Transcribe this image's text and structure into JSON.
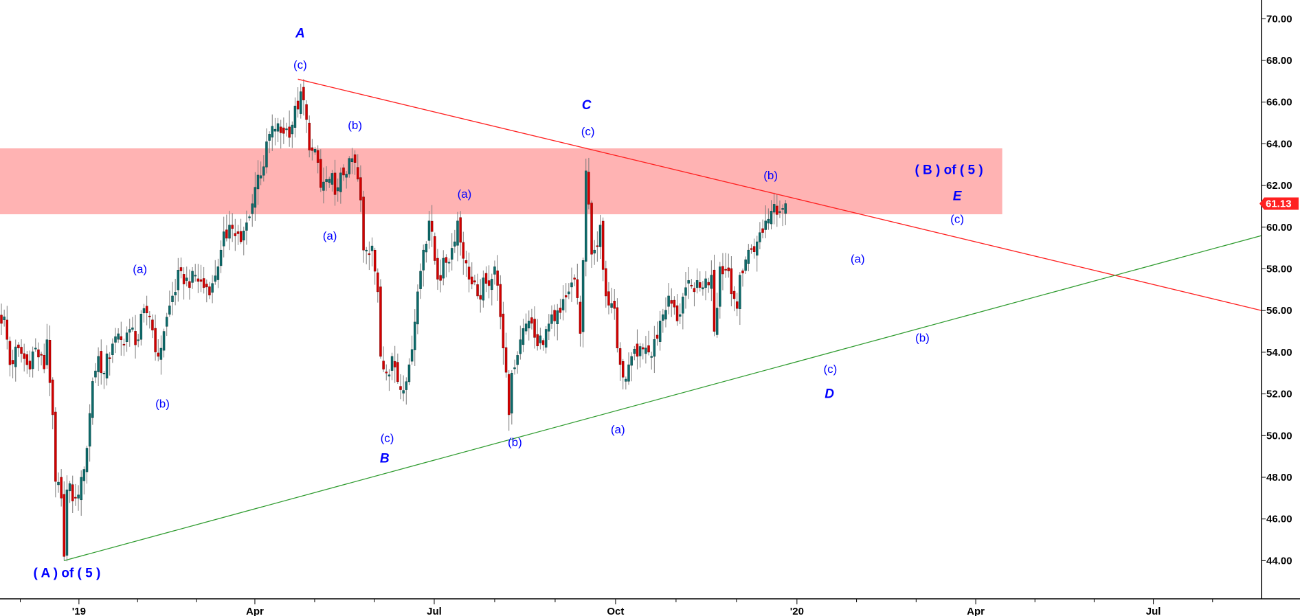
{
  "chart_data": {
    "type": "candlestick",
    "title": "",
    "xlabel": "",
    "ylabel": "",
    "ylim": [
      40.5,
      70.9
    ],
    "y_ticks": [
      "70.00",
      "68.00",
      "66.00",
      "64.00",
      "62.00",
      "60.00",
      "58.00",
      "56.00",
      "54.00",
      "52.00",
      "50.00",
      "48.00",
      "46.00",
      "44.00"
    ],
    "y_tick_values": [
      70,
      68,
      66,
      64,
      62,
      60,
      58,
      56,
      54,
      52,
      50,
      48,
      46,
      44
    ],
    "x_unit": "trading-day index",
    "xlim": [
      0,
      442
    ],
    "x_ticks": [
      {
        "label": "'19",
        "index": 27.2
      },
      {
        "label": "Apr",
        "index": 88.9
      },
      {
        "label": "Jul",
        "index": 151.8
      },
      {
        "label": "Oct",
        "index": 215.4
      },
      {
        "label": "'20",
        "index": 279
      },
      {
        "label": "Apr",
        "index": 341.7
      },
      {
        "label": "Jul",
        "index": 404
      }
    ],
    "last_price": "61.13",
    "colors": {
      "up": "#0d6b6b",
      "down": "#d40000",
      "wick": "#7a7a7a",
      "label": "#0000ff",
      "last_price_bg": "#ff2020",
      "band": "#ffb3b3",
      "resistance": "#ff2020",
      "support": "#2e9b2e"
    },
    "close_waypoints": [
      [
        1,
        55.7
      ],
      [
        3,
        53.4
      ],
      [
        6,
        54.2
      ],
      [
        9,
        53.4
      ],
      [
        12,
        54.2
      ],
      [
        15,
        53.2
      ],
      [
        16,
        54.6
      ],
      [
        18,
        51
      ],
      [
        19,
        47.8
      ],
      [
        21,
        47
      ],
      [
        22,
        44.2
      ],
      [
        23,
        47.4
      ],
      [
        26,
        47
      ],
      [
        28,
        48
      ],
      [
        30,
        49.4
      ],
      [
        32,
        52.6
      ],
      [
        34,
        53.8
      ],
      [
        36,
        53
      ],
      [
        39,
        54.4
      ],
      [
        42,
        54.6
      ],
      [
        45,
        55.1
      ],
      [
        48,
        54.6
      ],
      [
        50,
        56.1
      ],
      [
        52,
        55.7
      ],
      [
        55,
        53.8
      ],
      [
        57,
        55
      ],
      [
        60,
        56.7
      ],
      [
        63,
        57.9
      ],
      [
        66,
        57.1
      ],
      [
        68,
        57.7
      ],
      [
        71,
        57.1
      ],
      [
        74,
        57.3
      ],
      [
        77,
        58.9
      ],
      [
        80,
        60.1
      ],
      [
        84,
        59.3
      ],
      [
        87,
        60.5
      ],
      [
        90,
        62.5
      ],
      [
        92,
        62.9
      ],
      [
        93,
        64.1
      ],
      [
        96,
        64.7
      ],
      [
        99,
        64.5
      ],
      [
        102,
        64.9
      ],
      [
        105,
        66.5
      ],
      [
        106,
        66.1
      ],
      [
        108,
        63.7
      ],
      [
        111,
        63.1
      ],
      [
        112,
        61.9
      ],
      [
        115,
        62.3
      ],
      [
        118,
        61.9
      ],
      [
        120,
        62.5
      ],
      [
        122,
        63.3
      ],
      [
        124,
        63.1
      ],
      [
        126,
        61.3
      ],
      [
        127,
        58.9
      ],
      [
        128,
        58.9
      ],
      [
        130,
        59.1
      ],
      [
        132,
        56.9
      ],
      [
        133,
        53.8
      ],
      [
        135,
        53
      ],
      [
        137,
        53.8
      ],
      [
        140,
        52.2
      ],
      [
        143,
        53.4
      ],
      [
        146,
        56.9
      ],
      [
        148,
        58.9
      ],
      [
        150,
        60.3
      ],
      [
        153,
        57.5
      ],
      [
        156,
        58.3
      ],
      [
        159,
        59.3
      ],
      [
        160,
        60.3
      ],
      [
        162,
        58.5
      ],
      [
        164,
        57.5
      ],
      [
        167,
        56.7
      ],
      [
        170,
        57.3
      ],
      [
        173,
        58.1
      ],
      [
        175,
        55.7
      ],
      [
        176,
        54.2
      ],
      [
        178,
        51
      ],
      [
        179,
        53
      ],
      [
        182,
        54.6
      ],
      [
        185,
        55.5
      ],
      [
        188,
        54.3
      ],
      [
        191,
        55.1
      ],
      [
        194,
        55.5
      ],
      [
        196,
        55.9
      ],
      [
        199,
        56.9
      ],
      [
        201,
        57.5
      ],
      [
        203,
        54.9
      ],
      [
        205,
        62.7
      ],
      [
        207,
        58.7
      ],
      [
        208,
        58.9
      ],
      [
        210,
        60.1
      ],
      [
        212,
        56.7
      ],
      [
        215,
        56.1
      ],
      [
        216,
        54.2
      ],
      [
        218,
        52.8
      ],
      [
        220,
        53.4
      ],
      [
        223,
        53.8
      ],
      [
        226,
        54.2
      ],
      [
        228,
        53.8
      ],
      [
        231,
        55.5
      ],
      [
        234,
        56.7
      ],
      [
        237,
        55.5
      ],
      [
        240,
        57.1
      ],
      [
        243,
        56.9
      ],
      [
        246,
        57.1
      ],
      [
        249,
        57.7
      ],
      [
        250,
        55
      ],
      [
        252,
        58.1
      ],
      [
        255,
        57.9
      ],
      [
        258,
        56.1
      ],
      [
        259,
        57.7
      ],
      [
        262,
        58.9
      ],
      [
        265,
        59.3
      ],
      [
        268,
        60.3
      ],
      [
        271,
        61.1
      ],
      [
        274,
        60.9
      ],
      [
        275,
        61.13
      ]
    ],
    "extremes": {
      "low": {
        "index": 22,
        "price": 44.0
      },
      "high": {
        "index": 106,
        "price": 67.1
      }
    },
    "resistance_zone": {
      "from_index": 0,
      "to_index": 351,
      "low": 60.62,
      "high": 63.78
    },
    "trendlines": [
      {
        "name": "resistance",
        "from": [
          104,
          67.1
        ],
        "to": [
          442,
          56.0
        ]
      },
      {
        "name": "support",
        "from": [
          22,
          44.0
        ],
        "to": [
          442,
          59.6
        ]
      }
    ],
    "annotations": [
      {
        "text": "A",
        "style": "major",
        "index": 104.8,
        "price": 69.3
      },
      {
        "text": "(c)",
        "style": "minor",
        "index": 104.8,
        "price": 67.8
      },
      {
        "text": "(b)",
        "style": "minor",
        "index": 124.0,
        "price": 64.9
      },
      {
        "text": "(a)",
        "style": "minor",
        "index": 115.2,
        "price": 59.6
      },
      {
        "text": "(a)",
        "style": "minor",
        "index": 48.6,
        "price": 58.0
      },
      {
        "text": "(b)",
        "style": "minor",
        "index": 56.5,
        "price": 51.55
      },
      {
        "text": "(c)",
        "style": "minor",
        "index": 135.3,
        "price": 49.9
      },
      {
        "text": "B",
        "style": "major",
        "index": 134.4,
        "price": 48.9
      },
      {
        "text": "(a)",
        "style": "minor",
        "index": 162.4,
        "price": 61.6
      },
      {
        "text": "(b)",
        "style": "minor",
        "index": 180.1,
        "price": 49.7
      },
      {
        "text": "C",
        "style": "major",
        "index": 205.2,
        "price": 65.86
      },
      {
        "text": "(c)",
        "style": "minor",
        "index": 205.7,
        "price": 64.6
      },
      {
        "text": "(a)",
        "style": "minor",
        "index": 216.2,
        "price": 50.3
      },
      {
        "text": "(b)",
        "style": "minor",
        "index": 269.8,
        "price": 62.5
      },
      {
        "text": "(c)",
        "style": "minor",
        "index": 290.7,
        "price": 53.2
      },
      {
        "text": "D",
        "style": "major",
        "index": 290.4,
        "price": 52.0
      },
      {
        "text": "(a)",
        "style": "minor",
        "index": 300.3,
        "price": 58.5
      },
      {
        "text": "(b)",
        "style": "minor",
        "index": 323.0,
        "price": 54.7
      },
      {
        "text": "( B ) of ( 5 )",
        "style": "degree",
        "index": 332.3,
        "price": 62.75
      },
      {
        "text": "E",
        "style": "major",
        "index": 335.2,
        "price": 61.5
      },
      {
        "text": "(c)",
        "style": "minor",
        "index": 335.2,
        "price": 60.4
      },
      {
        "text": "( A ) of ( 5 )",
        "style": "degree",
        "index": 23.0,
        "price": 43.4
      }
    ]
  }
}
